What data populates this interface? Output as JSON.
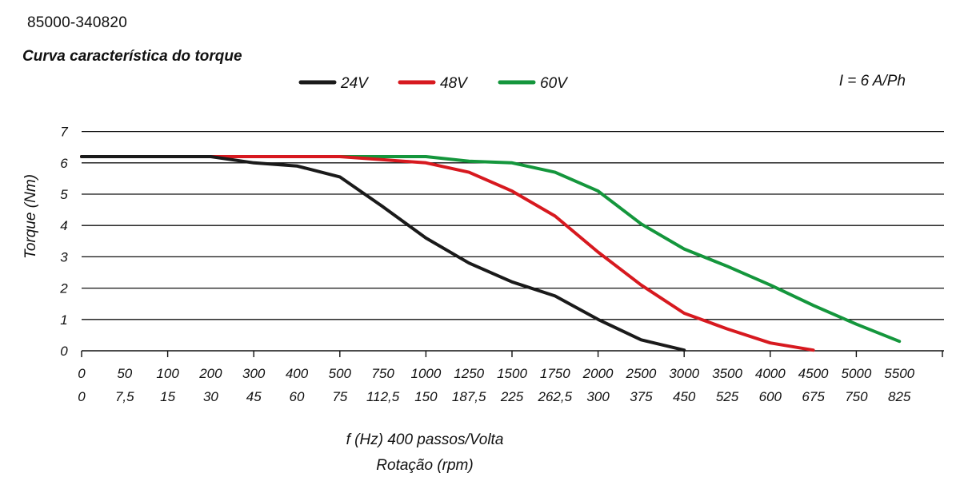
{
  "header": {
    "part_number": "85000-340820",
    "title": "Curva característica do torque"
  },
  "current_label": "I = 6 A/Ph",
  "chart_data": {
    "type": "line",
    "title": "Curva característica do torque",
    "ylabel": "Torque (Nm)",
    "xlabel": "f (Hz) 400 passos/Volta",
    "xlabel2": "Rotação (rpm)",
    "ylim": [
      0,
      7
    ],
    "yticks": [
      "0",
      "1",
      "2",
      "3",
      "4",
      "5",
      "6",
      "7"
    ],
    "x_categories_hz": [
      "0",
      "50",
      "100",
      "200",
      "300",
      "400",
      "500",
      "750",
      "1000",
      "1250",
      "1500",
      "1750",
      "2000",
      "2500",
      "3000",
      "3500",
      "4000",
      "4500",
      "5000",
      "5500"
    ],
    "x_categories_rpm": [
      "0",
      "7,5",
      "15",
      "30",
      "45",
      "60",
      "75",
      "112,5",
      "150",
      "187,5",
      "225",
      "262,5",
      "300",
      "375",
      "450",
      "525",
      "600",
      "675",
      "750",
      "825"
    ],
    "legend_position": "top-center",
    "series": [
      {
        "name": "24V",
        "color": "#1a1a1a",
        "x_index": [
          0,
          1,
          2,
          3,
          4,
          5,
          6,
          7,
          8,
          9,
          10,
          11,
          12,
          13,
          14
        ],
        "values": [
          6.2,
          6.2,
          6.2,
          6.2,
          6.0,
          5.9,
          5.55,
          4.6,
          3.6,
          2.8,
          2.2,
          1.75,
          1.0,
          0.35,
          0.02
        ]
      },
      {
        "name": "48V",
        "color": "#d7191f",
        "x_index": [
          0,
          1,
          2,
          3,
          4,
          5,
          6,
          7,
          8,
          9,
          10,
          11,
          12,
          13,
          14,
          15,
          16,
          17
        ],
        "values": [
          6.2,
          6.2,
          6.2,
          6.2,
          6.2,
          6.2,
          6.2,
          6.1,
          6.0,
          5.7,
          5.1,
          4.3,
          3.15,
          2.1,
          1.2,
          0.7,
          0.25,
          0.02
        ]
      },
      {
        "name": "60V",
        "color": "#14963c",
        "x_index": [
          0,
          1,
          2,
          3,
          4,
          5,
          6,
          7,
          8,
          9,
          10,
          11,
          12,
          13,
          14,
          15,
          16,
          17,
          18,
          19
        ],
        "values": [
          6.2,
          6.2,
          6.2,
          6.2,
          6.2,
          6.2,
          6.2,
          6.2,
          6.2,
          6.05,
          6.0,
          5.7,
          5.1,
          4.05,
          3.25,
          2.7,
          2.1,
          1.45,
          0.85,
          0.3
        ]
      }
    ]
  }
}
